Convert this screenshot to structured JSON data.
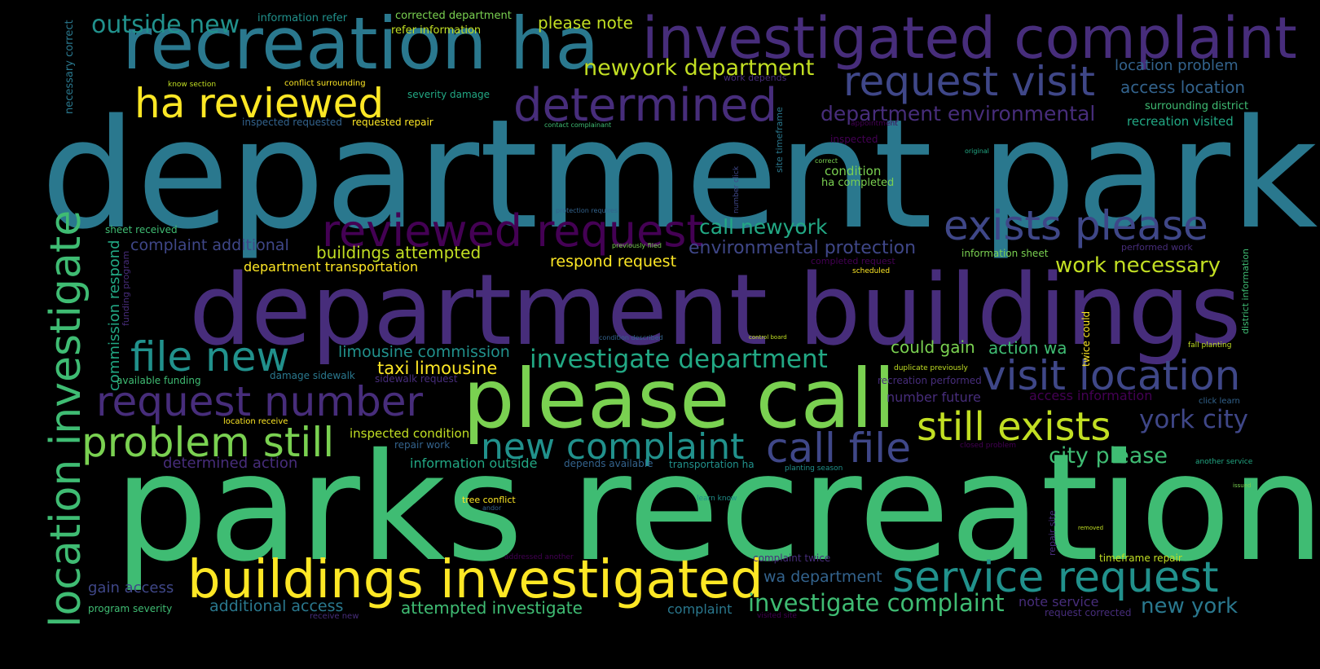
{
  "palette": {
    "background": "#000000",
    "c1": "#fde725",
    "c2": "#c2df23",
    "c3": "#7ad151",
    "c4": "#3fbc73",
    "c5": "#22a884",
    "c6": "#21918c",
    "c7": "#2a788e",
    "c8": "#33638d",
    "c9": "#3f4788",
    "c10": "#472d7b",
    "c11": "#440154"
  },
  "words": [
    {
      "text": "department parks",
      "color": "#2a788e"
    },
    {
      "text": "parks recreation",
      "color": "#3fbc73"
    },
    {
      "text": "department buildings",
      "color": "#472d7b"
    },
    {
      "text": "please call",
      "color": "#7ad151"
    },
    {
      "text": "recreation ha",
      "color": "#2a788e"
    },
    {
      "text": "investigated complaint",
      "color": "#472d7b"
    },
    {
      "text": "buildings investigated",
      "color": "#fde725"
    },
    {
      "text": "location investigate",
      "color": "#3fbc73"
    },
    {
      "text": "reviewed request",
      "color": "#440154"
    },
    {
      "text": "determined",
      "color": "#472d7b"
    },
    {
      "text": "request number",
      "color": "#472d7b"
    },
    {
      "text": "problem still",
      "color": "#7ad151"
    },
    {
      "text": "ha reviewed",
      "color": "#fde725"
    },
    {
      "text": "file new",
      "color": "#21918c"
    },
    {
      "text": "exists please",
      "color": "#3f4788"
    },
    {
      "text": "request visit",
      "color": "#3f4788"
    },
    {
      "text": "visit location",
      "color": "#3f4788"
    },
    {
      "text": "still exists",
      "color": "#c2df23"
    },
    {
      "text": "service request",
      "color": "#21918c"
    },
    {
      "text": "new complaint",
      "color": "#21918c"
    },
    {
      "text": "call file",
      "color": "#3f4788"
    },
    {
      "text": "newyork department",
      "color": "#c2df23"
    },
    {
      "text": "outside new",
      "color": "#21918c"
    },
    {
      "text": "investigate department",
      "color": "#22a884"
    },
    {
      "text": "investigate complaint",
      "color": "#3fbc73"
    },
    {
      "text": "department environmental",
      "color": "#472d7b"
    },
    {
      "text": "york city",
      "color": "#3f4788"
    },
    {
      "text": "call newyork",
      "color": "#22a884"
    },
    {
      "text": "environmental protection",
      "color": "#3f4788"
    },
    {
      "text": "commission respond",
      "color": "#22a884"
    },
    {
      "text": "work necessary",
      "color": "#c2df23"
    },
    {
      "text": "city please",
      "color": "#3fbc73"
    },
    {
      "text": "new york",
      "color": "#2a788e"
    },
    {
      "text": "taxi limousine",
      "color": "#fde725"
    },
    {
      "text": "limousine commission",
      "color": "#21918c"
    },
    {
      "text": "buildings attempted",
      "color": "#c2df23"
    },
    {
      "text": "complaint additional",
      "color": "#3f4788"
    },
    {
      "text": "respond request",
      "color": "#fde725"
    },
    {
      "text": "attempted investigate",
      "color": "#3fbc73"
    },
    {
      "text": "additional access",
      "color": "#2a788e"
    },
    {
      "text": "wa department",
      "color": "#33638d"
    },
    {
      "text": "could gain",
      "color": "#7ad151"
    },
    {
      "text": "action wa",
      "color": "#3fbc73"
    },
    {
      "text": "gain access",
      "color": "#3f4788"
    },
    {
      "text": "please note",
      "color": "#c2df23"
    },
    {
      "text": "location problem",
      "color": "#33638d"
    },
    {
      "text": "access location",
      "color": "#33638d"
    },
    {
      "text": "department transportation",
      "color": "#fde725"
    },
    {
      "text": "determined action",
      "color": "#472d7b"
    },
    {
      "text": "information outside",
      "color": "#22a884"
    },
    {
      "text": "number future",
      "color": "#472d7b"
    },
    {
      "text": "access information",
      "color": "#440154"
    },
    {
      "text": "note service",
      "color": "#472d7b"
    },
    {
      "text": "complaint",
      "color": "#2a788e"
    },
    {
      "text": "recreation visited",
      "color": "#22a884"
    },
    {
      "text": "condition",
      "color": "#7ad151"
    },
    {
      "text": "inspected condition",
      "color": "#c2df23"
    },
    {
      "text": "surrounding district",
      "color": "#3fbc73"
    },
    {
      "text": "ha completed",
      "color": "#7ad151"
    },
    {
      "text": "sheet received",
      "color": "#3fbc73"
    },
    {
      "text": "information sheet",
      "color": "#7ad151"
    },
    {
      "text": "corrected department",
      "color": "#7ad151"
    },
    {
      "text": "refer information",
      "color": "#c2df23"
    },
    {
      "text": "information refer",
      "color": "#21918c"
    },
    {
      "text": "severity damage",
      "color": "#22a884"
    },
    {
      "text": "inspected requested",
      "color": "#33638d"
    },
    {
      "text": "requested repair",
      "color": "#fde725"
    },
    {
      "text": "timeframe repair",
      "color": "#c2df23"
    },
    {
      "text": "program severity",
      "color": "#3fbc73"
    },
    {
      "text": "complaint twice",
      "color": "#472d7b"
    },
    {
      "text": "available funding",
      "color": "#3fbc73"
    },
    {
      "text": "damage sidewalk",
      "color": "#2a788e"
    },
    {
      "text": "sidewalk request",
      "color": "#472d7b"
    },
    {
      "text": "recreation performed",
      "color": "#472d7b"
    },
    {
      "text": "location receive",
      "color": "#fde725"
    },
    {
      "text": "repair work",
      "color": "#33638d"
    },
    {
      "text": "depends available",
      "color": "#33638d"
    },
    {
      "text": "transportation ha",
      "color": "#21918c"
    },
    {
      "text": "tree conflict",
      "color": "#fde725"
    },
    {
      "text": "inspected",
      "color": "#440154"
    },
    {
      "text": "performed work",
      "color": "#472d7b"
    },
    {
      "text": "completed request",
      "color": "#440154"
    },
    {
      "text": "request corrected",
      "color": "#472d7b"
    },
    {
      "text": "work depends",
      "color": "#472d7b"
    },
    {
      "text": "necessary correct",
      "color": "#2a788e"
    },
    {
      "text": "funding program",
      "color": "#472d7b"
    },
    {
      "text": "district information",
      "color": "#3fbc73"
    },
    {
      "text": "twice could",
      "color": "#fde725"
    },
    {
      "text": "site timeframe",
      "color": "#2a788e"
    },
    {
      "text": "repair site",
      "color": "#472d7b"
    },
    {
      "text": "number click",
      "color": "#3f4788"
    },
    {
      "text": "duplicate previously",
      "color": "#c2df23"
    },
    {
      "text": "closed problem",
      "color": "#440154"
    },
    {
      "text": "another service",
      "color": "#22a884"
    },
    {
      "text": "click learn",
      "color": "#33638d"
    },
    {
      "text": "fall planting",
      "color": "#c2df23"
    },
    {
      "text": "planting season",
      "color": "#21918c"
    },
    {
      "text": "addressed another",
      "color": "#440154"
    },
    {
      "text": "visited site",
      "color": "#440154"
    },
    {
      "text": "receive new",
      "color": "#472d7b"
    },
    {
      "text": "know section",
      "color": "#c2df23"
    },
    {
      "text": "conflict surrounding",
      "color": "#fde725"
    },
    {
      "text": "contact complainant",
      "color": "#3fbc73"
    },
    {
      "text": "appointment",
      "color": "#440154"
    },
    {
      "text": "protection requires",
      "color": "#33638d"
    },
    {
      "text": "previously filed",
      "color": "#7ad151"
    },
    {
      "text": "scheduled",
      "color": "#fde725"
    },
    {
      "text": "condition described",
      "color": "#33638d"
    },
    {
      "text": "control board",
      "color": "#c2df23"
    },
    {
      "text": "learn know",
      "color": "#21918c"
    },
    {
      "text": "original",
      "color": "#22a884"
    },
    {
      "text": "correct",
      "color": "#7ad151"
    },
    {
      "text": "andor",
      "color": "#33638d"
    },
    {
      "text": "issued",
      "color": "#7ad151"
    },
    {
      "text": "removed",
      "color": "#c2df23"
    }
  ]
}
